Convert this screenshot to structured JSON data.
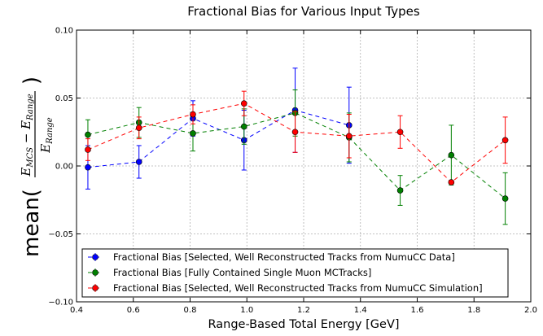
{
  "chart_data": {
    "type": "line",
    "title": "Fractional Bias for Various Input Types",
    "xlabel": "Range-Based Total Energy [GeV]",
    "ylabel": {
      "func": "mean(",
      "numerator": "E",
      "numerator_sub": "MCS",
      "minus": " − ",
      "numerator2": "E",
      "numerator2_sub": "Range",
      "denominator": "E",
      "denominator_sub": "Range",
      "close": ")"
    },
    "xlim": [
      0.4,
      2.0
    ],
    "ylim": [
      -0.1,
      0.1
    ],
    "xticks": [
      "0.4",
      "0.6",
      "0.8",
      "1.0",
      "1.2",
      "1.4",
      "1.6",
      "1.8",
      "2.0"
    ],
    "yticks": [
      "−0.10",
      "−0.05",
      "0.00",
      "0.05",
      "0.10"
    ],
    "grid": true,
    "legend_position": "lower-left",
    "series": [
      {
        "name": "Fractional Bias [Selected, Well Reconstructed Tracks from NumuCC Data]",
        "color": "#0000ff",
        "x": [
          0.44,
          0.62,
          0.81,
          0.99,
          1.17,
          1.36
        ],
        "y": [
          -0.001,
          0.003,
          0.035,
          0.019,
          0.041,
          0.03
        ],
        "err": [
          0.016,
          0.012,
          0.013,
          0.022,
          0.031,
          0.028
        ]
      },
      {
        "name": "Fractional Bias [Fully Contained Single Muon MCTracks]",
        "color": "#008000",
        "x": [
          0.44,
          0.62,
          0.81,
          0.99,
          1.17,
          1.36,
          1.54,
          1.72,
          1.91
        ],
        "y": [
          0.023,
          0.032,
          0.024,
          0.029,
          0.039,
          0.021,
          -0.018,
          0.008,
          -0.024
        ],
        "err": [
          0.011,
          0.011,
          0.013,
          0.013,
          0.017,
          0.018,
          0.011,
          0.022,
          0.019
        ]
      },
      {
        "name": "Fractional Bias [Selected, Well Reconstructed Tracks from NumuCC Simulation]",
        "color": "#ff0000",
        "x": [
          0.44,
          0.62,
          0.81,
          0.99,
          1.17,
          1.36,
          1.54,
          1.72,
          1.91
        ],
        "y": [
          0.012,
          0.028,
          0.038,
          0.046,
          0.025,
          0.022,
          0.025,
          -0.012,
          0.019
        ],
        "err": [
          0.008,
          0.008,
          0.007,
          0.009,
          0.015,
          0.016,
          0.012,
          0.0,
          0.017
        ]
      }
    ]
  }
}
